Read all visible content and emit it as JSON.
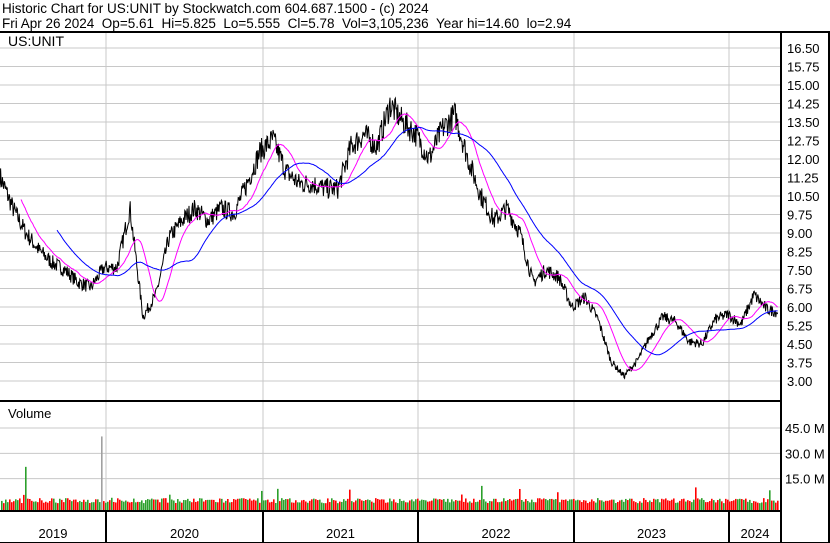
{
  "header": {
    "title": "Historic Chart for US:UNIT by Stockwatch.com 604.687.1500 - (c) 2024",
    "quote": "Fri Apr 26 2024  Op=5.61  Hi=5.825  Lo=5.555  Cl=5.78  Vol=3,105,236  Year hi=14.60  lo=2.94"
  },
  "chart_data": {
    "type": "line",
    "symbol_label": "US:UNIT",
    "price_axis": {
      "ticks": [
        "16.50",
        "15.75",
        "15.00",
        "14.25",
        "13.50",
        "12.75",
        "12.00",
        "11.25",
        "10.50",
        "9.75",
        "9.00",
        "8.25",
        "7.50",
        "6.75",
        "6.00",
        "5.25",
        "4.50",
        "3.75",
        "3.00"
      ],
      "range": [
        3.0,
        16.5
      ]
    },
    "volume_label": "Volume",
    "volume_axis": {
      "ticks": [
        "45.0 M",
        "30.0 M",
        "15.0 M"
      ],
      "range": [
        0,
        45
      ]
    },
    "x_labels": [
      "2019",
      "2020",
      "2021",
      "2022",
      "2023",
      "2024"
    ],
    "monthly_close_from_apr_2019": [
      11.3,
      10.0,
      9.0,
      8.3,
      7.8,
      7.5,
      7.0,
      6.8,
      7.6,
      7.6,
      10.0,
      5.6,
      6.5,
      8.8,
      9.5,
      10.0,
      9.5,
      10.0,
      9.8,
      11.0,
      12.3,
      12.8,
      11.5,
      11.0,
      11.0,
      10.8,
      10.8,
      12.5,
      13.0,
      12.5,
      14.2,
      13.5,
      13.0,
      12.0,
      13.2,
      13.8,
      12.0,
      10.5,
      9.5,
      10.0,
      9.0,
      7.0,
      7.5,
      7.2,
      6.0,
      6.4,
      5.5,
      3.8,
      3.2,
      3.8,
      4.8,
      5.6,
      5.4,
      4.6,
      4.5,
      5.5,
      5.7,
      5.3,
      6.5,
      5.9,
      5.78
    ],
    "series_colors": {
      "price": "#000000",
      "short_ma": "#ff00ff",
      "long_ma": "#0000ff",
      "volume_up": "#2ca02c",
      "volume_down": "#ff0000"
    }
  }
}
